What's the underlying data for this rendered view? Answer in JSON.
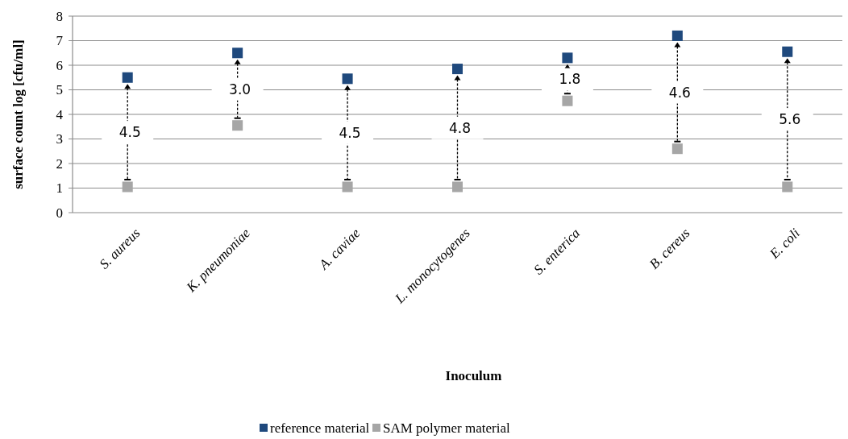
{
  "chart_data": {
    "type": "scatter",
    "xlabel": "Inoculum",
    "ylabel": "surface count log [cfu/ml]",
    "categories": [
      "S. aureus",
      "K. pneumoniae",
      "A. caviae",
      "L. monocytogenes",
      "S. enterica",
      "B. cereus",
      "E. coli"
    ],
    "series": [
      {
        "name": "reference material",
        "color": "#1f497d",
        "values": [
          5.5,
          6.5,
          5.45,
          5.85,
          6.3,
          7.2,
          6.55
        ]
      },
      {
        "name": "SAM polymer material",
        "color": "#a6a6a6",
        "values": [
          1.05,
          3.55,
          1.05,
          1.05,
          4.55,
          2.6,
          1.05
        ]
      }
    ],
    "annotations": [
      "4.5",
      "3.0",
      "4.5",
      "4.8",
      "1.8",
      "4.6",
      "5.6"
    ],
    "ylim": [
      0,
      8
    ],
    "yticks": [
      0,
      1,
      2,
      3,
      4,
      5,
      6,
      7,
      8
    ],
    "grid": "y",
    "marker": "square",
    "legend": "bottom"
  }
}
